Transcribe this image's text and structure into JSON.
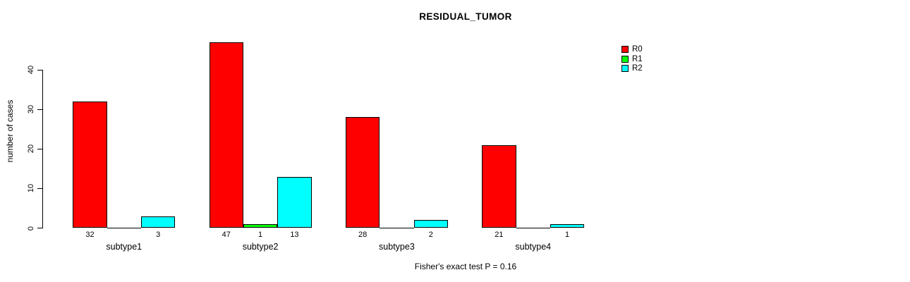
{
  "chart_data": {
    "type": "bar",
    "grouped": true,
    "title": "RESIDUAL_TUMOR",
    "ylabel": "number of cases",
    "xlabel": "",
    "annotation": "Fisher's exact test P = 0.16",
    "categories": [
      "subtype1",
      "subtype2",
      "subtype3",
      "subtype4"
    ],
    "series": [
      {
        "name": "R0",
        "color": "#ff0000",
        "values": [
          32,
          47,
          28,
          21
        ]
      },
      {
        "name": "R1",
        "color": "#00ff00",
        "values": [
          0,
          1,
          0,
          0
        ]
      },
      {
        "name": "R2",
        "color": "#00ffff",
        "values": [
          3,
          13,
          2,
          1
        ]
      }
    ],
    "yticks": [
      0,
      10,
      20,
      30,
      40
    ],
    "ylim": [
      0,
      47
    ],
    "bar_labels_shown_for_nonzero_only": true,
    "grid": "off",
    "legend_position": "top-right",
    "background_color": "#ffffff",
    "text_color": "#000000"
  }
}
